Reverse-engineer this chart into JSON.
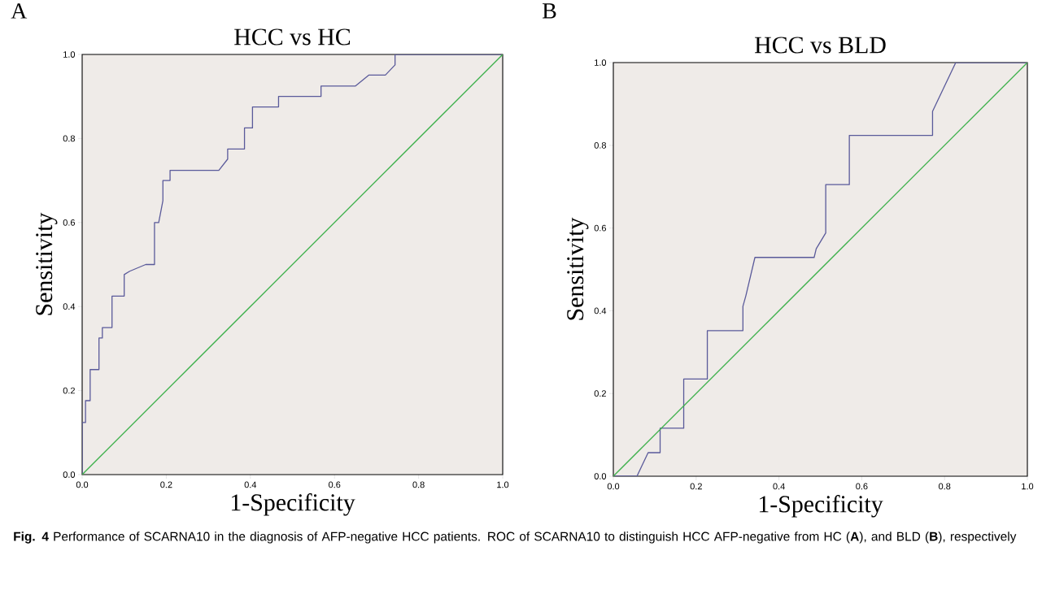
{
  "chart_data": [
    {
      "type": "line",
      "title": "HCC vs HC",
      "xlabel": "1-Specificity",
      "ylabel": "Sensitivity",
      "annotations": [
        "A",
        "**Fig. 4**  Performance of SCARNA10 in the diagnosis of AFP-negative HCC patients. ROC of SCARNA10 to distinguish HCC AFP-negative from HC (**A**), and BLD (**B**), respectively"
      ],
      "xlim": [
        0,
        1
      ],
      "ylim": [
        0,
        1
      ],
      "xticks": [
        {
          "value": 0,
          "label": "0.0"
        },
        {
          "value": 0.2,
          "label": "0.2"
        },
        {
          "value": 0.4,
          "label": "0.4"
        },
        {
          "value": 0.6,
          "label": "0.6"
        },
        {
          "value": 0.8,
          "label": "0.8"
        },
        {
          "value": 1,
          "label": "1.0"
        }
      ],
      "yticks": [
        {
          "value": 0,
          "label": "0.0"
        },
        {
          "value": 0.2,
          "label": "0.2"
        },
        {
          "value": 0.4,
          "label": "0.4"
        },
        {
          "value": 0.6,
          "label": "0.6"
        },
        {
          "value": 0.8,
          "label": "0.8"
        },
        {
          "value": 1,
          "label": "1.0"
        }
      ],
      "grid": false,
      "marker": "none",
      "line_style": "solid",
      "series": [
        {
          "color": "#5a5a9a",
          "x": [
            0,
            0,
            0.008,
            0.008,
            0.019,
            0.019,
            0.04,
            0.04,
            0.048,
            0.048,
            0.071,
            0.071,
            0.1,
            0.1,
            0.113,
            0.151,
            0.172,
            0.172,
            0.182,
            0.192,
            0.192,
            0.209,
            0.209,
            0.325,
            0.346,
            0.346,
            0.386,
            0.386,
            0.405,
            0.405,
            0.467,
            0.467,
            0.568,
            0.568,
            0.65,
            0.682,
            0.721,
            0.744,
            0.744,
            1
          ],
          "values": [
            0,
            0.124,
            0.124,
            0.176,
            0.176,
            0.25,
            0.25,
            0.325,
            0.325,
            0.35,
            0.35,
            0.425,
            0.425,
            0.476,
            0.484,
            0.5,
            0.5,
            0.6,
            0.6,
            0.652,
            0.7,
            0.7,
            0.724,
            0.724,
            0.751,
            0.775,
            0.775,
            0.825,
            0.825,
            0.875,
            0.875,
            0.9,
            0.9,
            0.925,
            0.925,
            0.951,
            0.951,
            0.975,
            1,
            1
          ]
        },
        {
          "color": "#3cb04a",
          "x": [
            0,
            1
          ],
          "values": [
            0,
            1
          ]
        }
      ]
    },
    {
      "type": "line",
      "title": "HCC vs BLD",
      "xlabel": "1-Specificity",
      "ylabel": "Sensitivity",
      "annotations": [
        "B"
      ],
      "xlim": [
        0,
        1
      ],
      "ylim": [
        0,
        1
      ],
      "xticks": [
        {
          "value": 0,
          "label": "0.0"
        },
        {
          "value": 0.2,
          "label": "0.2"
        },
        {
          "value": 0.4,
          "label": "0.4"
        },
        {
          "value": 0.6,
          "label": "0.6"
        },
        {
          "value": 0.8,
          "label": "0.8"
        },
        {
          "value": 1,
          "label": "1.0"
        }
      ],
      "yticks": [
        {
          "value": 0,
          "label": "0.0"
        },
        {
          "value": 0.2,
          "label": "0.2"
        },
        {
          "value": 0.4,
          "label": "0.4"
        },
        {
          "value": 0.6,
          "label": "0.6"
        },
        {
          "value": 0.8,
          "label": "0.8"
        },
        {
          "value": 1,
          "label": "1.0"
        }
      ],
      "grid": false,
      "marker": "none",
      "line_style": "solid",
      "series": [
        {
          "color": "#5a5a9a",
          "x": [
            0,
            0.057,
            0.084,
            0.113,
            0.113,
            0.17,
            0.17,
            0.227,
            0.227,
            0.313,
            0.313,
            0.32,
            0.342,
            0.485,
            0.49,
            0.513,
            0.513,
            0.57,
            0.57,
            0.771,
            0.771,
            0.827,
            1
          ],
          "values": [
            0,
            0,
            0.057,
            0.057,
            0.116,
            0.116,
            0.235,
            0.235,
            0.352,
            0.352,
            0.411,
            0.436,
            0.529,
            0.529,
            0.55,
            0.588,
            0.705,
            0.705,
            0.824,
            0.824,
            0.882,
            1,
            1
          ]
        },
        {
          "color": "#3cb04a",
          "x": [
            0,
            1
          ],
          "values": [
            0,
            1
          ]
        }
      ]
    }
  ]
}
